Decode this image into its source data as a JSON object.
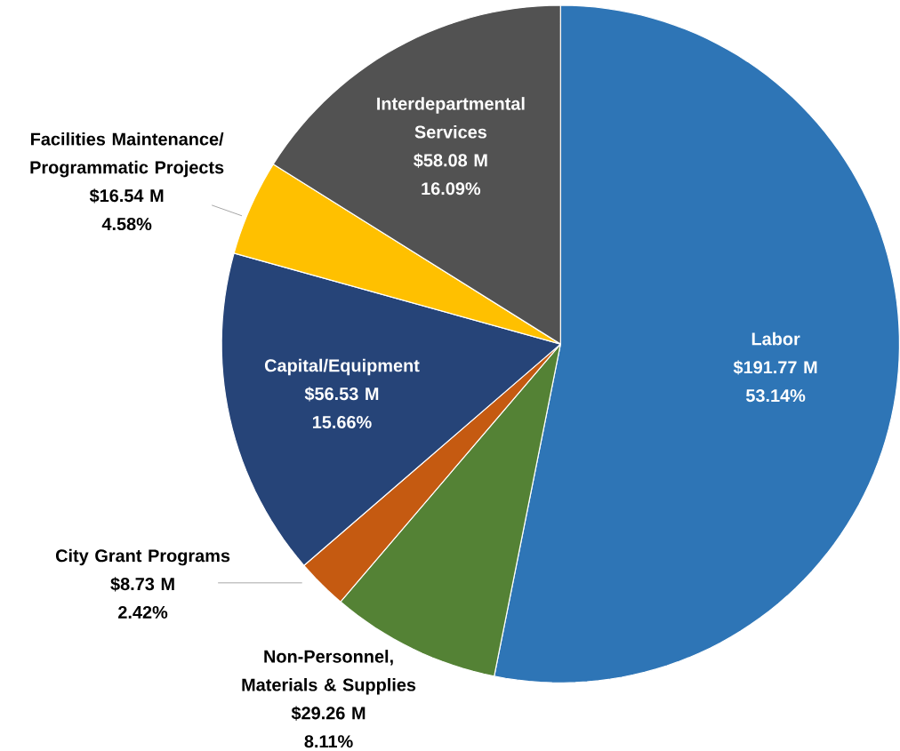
{
  "chart_data": {
    "type": "pie",
    "categories": [
      "Labor",
      "Non-Personnel, Materials & Supplies",
      "City Grant Programs",
      "Capital/Equipment",
      "Facilities Maintenance/ Programmatic Projects",
      "Interdepartmental Services"
    ],
    "values": [
      191.77,
      29.26,
      8.73,
      56.53,
      16.54,
      58.08
    ],
    "value_labels": [
      "$191.77 M",
      "$29.26 M",
      "$8.73 M",
      "$56.53 M",
      "$16.54 M",
      "$58.08 M"
    ],
    "annotations": [
      "53.14%",
      "8.11%",
      "2.42%",
      "15.66%",
      "4.58%",
      "16.09%"
    ],
    "colors": [
      "#2e75b6",
      "#548235",
      "#c55a11",
      "#264478",
      "#ffc000",
      "#525252"
    ]
  }
}
